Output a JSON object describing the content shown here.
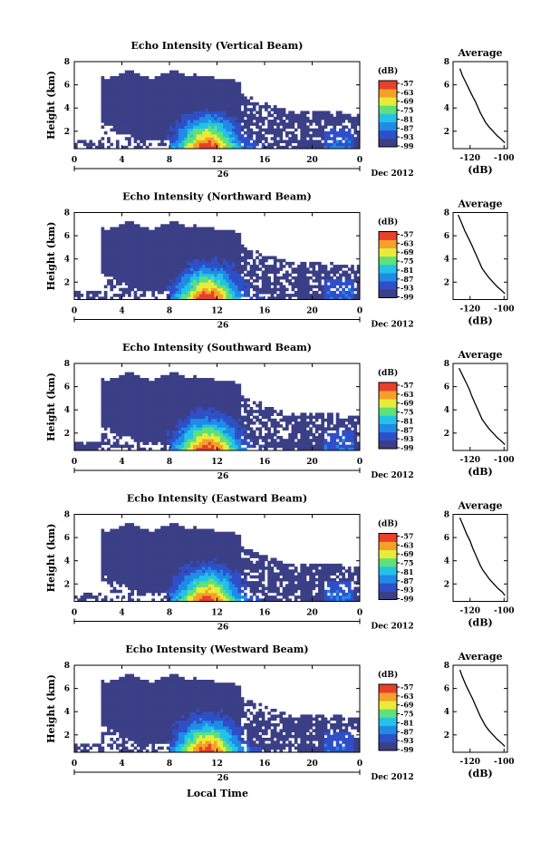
{
  "figure": {
    "x_axis_title": "Local Time",
    "date_label": "Dec 2012",
    "day_label": "26"
  },
  "chart_data": [
    {
      "type": "heatmap",
      "title": "Echo Intensity (Vertical Beam)",
      "ylabel": "Height (km)",
      "xlabel": "Local Time",
      "x_ticks": [
        "0",
        "4",
        "8",
        "12",
        "16",
        "20",
        "0"
      ],
      "y_ticks": [
        "2",
        "4",
        "6",
        "8"
      ],
      "xlim_hours": [
        0,
        24
      ],
      "ylim_km": [
        0.5,
        8
      ],
      "colorbar": {
        "unit": "(dB)",
        "levels": [
          "-57",
          "-63",
          "-69",
          "-75",
          "-81",
          "-87",
          "-93",
          "-99"
        ]
      },
      "profile": {
        "title": "Average",
        "xlabel": "(dB)",
        "x_ticks": [
          "-120",
          "-100"
        ],
        "y_ticks": [
          "2",
          "4",
          "6",
          "8"
        ],
        "xlim": [
          -130,
          -98
        ],
        "ylim": [
          0.5,
          8
        ],
        "points": [
          [
            -126,
            7.4
          ],
          [
            -124.5,
            6.8
          ],
          [
            -122.5,
            6.2
          ],
          [
            -120.5,
            5.6
          ],
          [
            -118.5,
            5.0
          ],
          [
            -117,
            4.6
          ],
          [
            -115.5,
            4.1
          ],
          [
            -114,
            3.6
          ],
          [
            -112.5,
            3.2
          ],
          [
            -111,
            2.8
          ],
          [
            -109,
            2.4
          ],
          [
            -106.5,
            2.0
          ],
          [
            -104,
            1.6
          ],
          [
            -101.5,
            1.3
          ],
          [
            -99.5,
            1.0
          ]
        ]
      }
    },
    {
      "type": "heatmap",
      "title": "Echo Intensity (Northward Beam)",
      "ylabel": "Height (km)",
      "xlabel": "Local Time",
      "x_ticks": [
        "0",
        "4",
        "8",
        "12",
        "16",
        "20",
        "0"
      ],
      "y_ticks": [
        "2",
        "4",
        "6",
        "8"
      ],
      "xlim_hours": [
        0,
        24
      ],
      "ylim_km": [
        0.5,
        8
      ],
      "colorbar": {
        "unit": "(dB)",
        "levels": [
          "-57",
          "-63",
          "-69",
          "-75",
          "-81",
          "-87",
          "-93",
          "-99"
        ]
      },
      "profile": {
        "title": "Average",
        "xlabel": "(dB)",
        "x_ticks": [
          "-120",
          "-100"
        ],
        "y_ticks": [
          "2",
          "4",
          "6",
          "8"
        ],
        "xlim": [
          -130,
          -98
        ],
        "ylim": [
          0.5,
          8
        ],
        "points": [
          [
            -127,
            7.8
          ],
          [
            -125,
            7.1
          ],
          [
            -123,
            6.4
          ],
          [
            -121,
            5.8
          ],
          [
            -119,
            5.2
          ],
          [
            -117.5,
            4.7
          ],
          [
            -116,
            4.2
          ],
          [
            -114.5,
            3.7
          ],
          [
            -113,
            3.2
          ],
          [
            -111,
            2.8
          ],
          [
            -109,
            2.4
          ],
          [
            -106.5,
            2.0
          ],
          [
            -104,
            1.6
          ],
          [
            -101.5,
            1.3
          ],
          [
            -99.5,
            1.0
          ]
        ]
      }
    },
    {
      "type": "heatmap",
      "title": "Echo Intensity (Southward Beam)",
      "ylabel": "Height (km)",
      "xlabel": "Local Time",
      "x_ticks": [
        "0",
        "4",
        "8",
        "12",
        "16",
        "20",
        "0"
      ],
      "y_ticks": [
        "2",
        "4",
        "6",
        "8"
      ],
      "xlim_hours": [
        0,
        24
      ],
      "ylim_km": [
        0.5,
        8
      ],
      "colorbar": {
        "unit": "(dB)",
        "levels": [
          "-57",
          "-63",
          "-69",
          "-75",
          "-81",
          "-87",
          "-93",
          "-99"
        ]
      },
      "profile": {
        "title": "Average",
        "xlabel": "(dB)",
        "x_ticks": [
          "-120",
          "-100"
        ],
        "y_ticks": [
          "2",
          "4",
          "6",
          "8"
        ],
        "xlim": [
          -130,
          -98
        ],
        "ylim": [
          0.5,
          8
        ],
        "points": [
          [
            -126.5,
            7.6
          ],
          [
            -124.5,
            7.0
          ],
          [
            -122.5,
            6.4
          ],
          [
            -120.5,
            5.8
          ],
          [
            -119,
            5.2
          ],
          [
            -117.5,
            4.7
          ],
          [
            -116,
            4.2
          ],
          [
            -114.5,
            3.7
          ],
          [
            -113,
            3.2
          ],
          [
            -111,
            2.8
          ],
          [
            -109,
            2.4
          ],
          [
            -106.5,
            2.0
          ],
          [
            -104,
            1.6
          ],
          [
            -101.5,
            1.3
          ],
          [
            -99.5,
            1.0
          ]
        ]
      }
    },
    {
      "type": "heatmap",
      "title": "Echo Intensity (Eastward Beam)",
      "ylabel": "Height (km)",
      "xlabel": "Local Time",
      "x_ticks": [
        "0",
        "4",
        "8",
        "12",
        "16",
        "20",
        "0"
      ],
      "y_ticks": [
        "2",
        "4",
        "6",
        "8"
      ],
      "xlim_hours": [
        0,
        24
      ],
      "ylim_km": [
        0.5,
        8
      ],
      "colorbar": {
        "unit": "(dB)",
        "levels": [
          "-57",
          "-63",
          "-69",
          "-75",
          "-81",
          "-87",
          "-93",
          "-99"
        ]
      },
      "profile": {
        "title": "Average",
        "xlabel": "(dB)",
        "x_ticks": [
          "-120",
          "-100"
        ],
        "y_ticks": [
          "2",
          "4",
          "6",
          "8"
        ],
        "xlim": [
          -130,
          -98
        ],
        "ylim": [
          0.5,
          8
        ],
        "points": [
          [
            -126,
            7.7
          ],
          [
            -124,
            7.0
          ],
          [
            -122,
            6.3
          ],
          [
            -120,
            5.7
          ],
          [
            -118.5,
            5.1
          ],
          [
            -117,
            4.6
          ],
          [
            -115.5,
            4.1
          ],
          [
            -114,
            3.6
          ],
          [
            -112.5,
            3.2
          ],
          [
            -110.5,
            2.8
          ],
          [
            -108.5,
            2.4
          ],
          [
            -106,
            2.0
          ],
          [
            -103.5,
            1.6
          ],
          [
            -101,
            1.3
          ],
          [
            -99.5,
            1.0
          ]
        ]
      }
    },
    {
      "type": "heatmap",
      "title": "Echo Intensity (Westward Beam)",
      "ylabel": "Height (km)",
      "xlabel": "Local Time",
      "x_ticks": [
        "0",
        "4",
        "8",
        "12",
        "16",
        "20",
        "0"
      ],
      "y_ticks": [
        "2",
        "4",
        "6",
        "8"
      ],
      "xlim_hours": [
        0,
        24
      ],
      "ylim_km": [
        0.5,
        8
      ],
      "colorbar": {
        "unit": "(dB)",
        "levels": [
          "-57",
          "-63",
          "-69",
          "-75",
          "-81",
          "-87",
          "-93",
          "-99"
        ]
      },
      "profile": {
        "title": "Average",
        "xlabel": "(dB)",
        "x_ticks": [
          "-120",
          "-100"
        ],
        "y_ticks": [
          "2",
          "4",
          "6",
          "8"
        ],
        "xlim": [
          -130,
          -98
        ],
        "ylim": [
          0.5,
          8
        ],
        "points": [
          [
            -126,
            7.6
          ],
          [
            -124.5,
            7.0
          ],
          [
            -122.5,
            6.3
          ],
          [
            -120.5,
            5.7
          ],
          [
            -118.5,
            5.1
          ],
          [
            -117,
            4.6
          ],
          [
            -115.5,
            4.1
          ],
          [
            -114,
            3.6
          ],
          [
            -112.5,
            3.2
          ],
          [
            -111,
            2.8
          ],
          [
            -109,
            2.4
          ],
          [
            -106.5,
            2.0
          ],
          [
            -104,
            1.6
          ],
          [
            -101.5,
            1.3
          ],
          [
            -99.5,
            1.0
          ]
        ]
      }
    }
  ]
}
